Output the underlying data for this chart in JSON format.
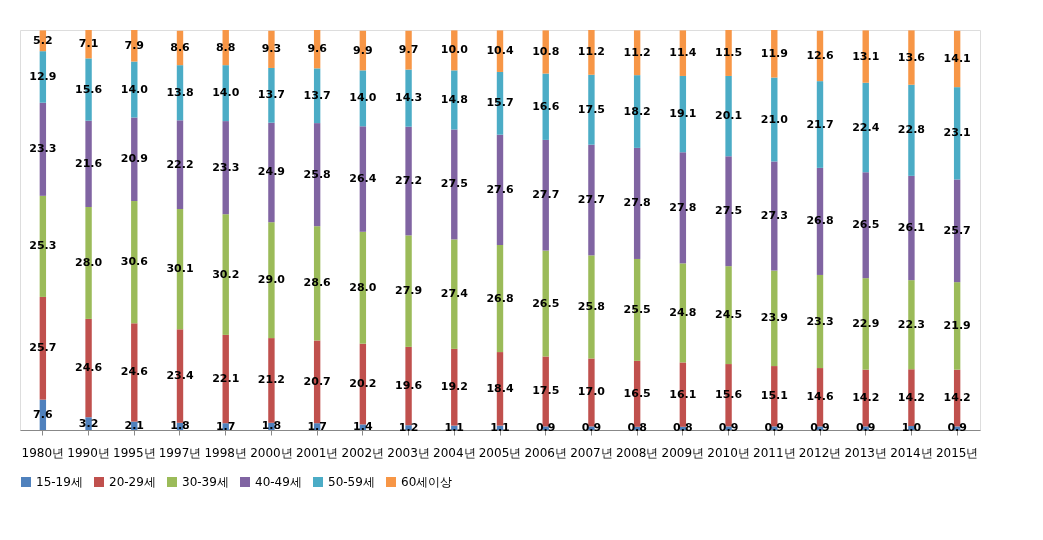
{
  "chart_data": {
    "type": "bar",
    "stacked": true,
    "grid": false,
    "legend": "bottom",
    "categories": [
      "1980년",
      "1990년",
      "1995년",
      "1997년",
      "1998년",
      "2000년",
      "2001년",
      "2002년",
      "2003년",
      "2004년",
      "2005년",
      "2006년",
      "2007년",
      "2008년",
      "2009년",
      "2010년",
      "2011년",
      "2012년",
      "2013년",
      "2014년",
      "2015년"
    ],
    "series": [
      {
        "name": "15-19세",
        "color": "#4f81bd",
        "values": [
          7.6,
          3.2,
          2.1,
          1.8,
          1.7,
          1.8,
          1.7,
          1.4,
          1.2,
          1.1,
          1.1,
          0.9,
          0.9,
          0.8,
          0.8,
          0.9,
          0.9,
          0.9,
          0.9,
          1.0,
          0.9
        ],
        "value_labels": [
          "7.6",
          "3.2",
          "2.1",
          "1.8",
          "1.7",
          "1.8",
          "1.7",
          "1.4",
          "1.2",
          "1.1",
          "1.1",
          "0.9",
          "0.9",
          "0.8",
          "0.8",
          "0.9",
          "0.9",
          "0.9",
          "0.9",
          "1.0",
          "0.9"
        ]
      },
      {
        "name": "20-29세",
        "color": "#c0504d",
        "values": [
          25.7,
          24.6,
          24.6,
          23.4,
          22.1,
          21.2,
          20.7,
          20.2,
          19.6,
          19.2,
          18.4,
          17.5,
          17.0,
          16.5,
          16.1,
          15.6,
          15.1,
          14.6,
          14.2,
          14.2,
          14.2
        ],
        "value_labels": [
          "25.7",
          "24.6",
          "24.6",
          "23.4",
          "22.1",
          "21.2",
          "20.7",
          "20.2",
          "19.6",
          "19.2",
          "18.4",
          "17.5",
          "17.0",
          "16.5",
          "16.1",
          "15.6",
          "15.1",
          "14.6",
          "14.2",
          "14.2",
          "14.2"
        ]
      },
      {
        "name": "30-39세",
        "color": "#9bbb59",
        "values": [
          25.3,
          28.0,
          30.6,
          30.1,
          30.2,
          29.0,
          28.6,
          28.0,
          27.9,
          27.4,
          26.8,
          26.5,
          25.8,
          25.5,
          24.8,
          24.5,
          23.9,
          23.3,
          22.9,
          22.3,
          21.9
        ],
        "value_labels": [
          "25.3",
          "28.0",
          "30.6",
          "30.1",
          "30.2",
          "29.0",
          "28.6",
          "28.0",
          "27.9",
          "27.4",
          "26.8",
          "26.5",
          "25.8",
          "25.5",
          "24.8",
          "24.5",
          "23.9",
          "23.3",
          "22.9",
          "22.3",
          "21.9"
        ]
      },
      {
        "name": "40-49세",
        "color": "#8064a2",
        "values": [
          23.3,
          21.6,
          20.9,
          22.2,
          23.3,
          24.9,
          25.8,
          26.4,
          27.2,
          27.5,
          27.6,
          27.7,
          27.7,
          27.8,
          27.8,
          27.5,
          27.3,
          26.8,
          26.5,
          26.1,
          25.7
        ],
        "value_labels": [
          "23.3",
          "21.6",
          "20.9",
          "22.2",
          "23.3",
          "24.9",
          "25.8",
          "26.4",
          "27.2",
          "27.5",
          "27.6",
          "27.7",
          "27.7",
          "27.8",
          "27.8",
          "27.5",
          "27.3",
          "26.8",
          "26.5",
          "26.1",
          "25.7"
        ]
      },
      {
        "name": "50-59세",
        "color": "#4bacc6",
        "values": [
          12.9,
          15.6,
          14.0,
          13.8,
          14.0,
          13.7,
          13.7,
          14.0,
          14.3,
          14.8,
          15.7,
          16.6,
          17.5,
          18.2,
          19.1,
          20.1,
          21.0,
          21.7,
          22.4,
          22.8,
          23.1
        ],
        "value_labels": [
          "12.9",
          "15.6",
          "14.0",
          "13.8",
          "14.0",
          "13.7",
          "13.7",
          "14.0",
          "14.3",
          "14.8",
          "15.7",
          "16.6",
          "17.5",
          "18.2",
          "19.1",
          "20.1",
          "21.0",
          "21.7",
          "22.4",
          "22.8",
          "23.1"
        ]
      },
      {
        "name": "60세이상",
        "color": "#f79646",
        "values": [
          5.2,
          7.1,
          7.9,
          8.6,
          8.8,
          9.3,
          9.6,
          9.9,
          9.7,
          10.0,
          10.4,
          10.8,
          11.2,
          11.2,
          11.4,
          11.5,
          11.9,
          12.6,
          13.1,
          13.6,
          14.1
        ],
        "value_labels": [
          "5.2",
          "7.1",
          "7.9",
          "8.6",
          "8.8",
          "9.3",
          "9.6",
          "9.9",
          "9.7",
          "10.0",
          "10.4",
          "10.8",
          "11.2",
          "11.2",
          "11.4",
          "11.5",
          "11.9",
          "12.6",
          "13.1",
          "13.6",
          "14.1"
        ]
      }
    ]
  }
}
